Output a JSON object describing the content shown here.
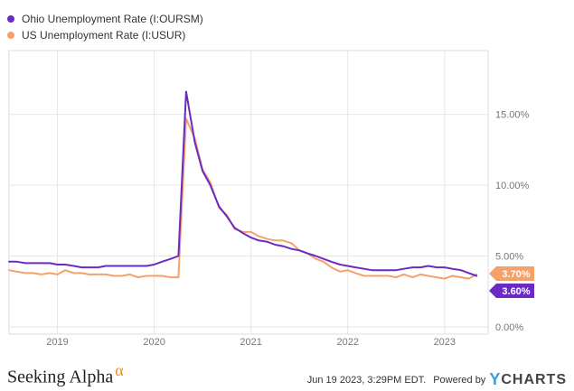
{
  "colors": {
    "ohio": "#6a2bc2",
    "us": "#f6a06a",
    "grid": "#e6e6e6",
    "axis_text": "#777777"
  },
  "legend": {
    "ohio_label": "Ohio Unemployment Rate (I:OURSM)",
    "us_label": "US Unemployment Rate (I:USUR)"
  },
  "footer": {
    "brand": "Seeking Alpha",
    "brand_symbol": "α",
    "timestamp": "Jun 19 2023, 3:29PM EDT.",
    "powered_by": "Powered by",
    "ycharts_y": "Y",
    "ycharts_word": "CHARTS"
  },
  "chart_data": {
    "type": "line",
    "title": "",
    "xlabel": "",
    "ylabel": "",
    "x_ticks": [
      "2019",
      "2020",
      "2021",
      "2022",
      "2023"
    ],
    "y_ticks": [
      "0.00%",
      "5.00%",
      "10.00%",
      "15.00%"
    ],
    "ylim": [
      0,
      19.5
    ],
    "xlim": [
      2018.5,
      2023.45
    ],
    "end_labels": {
      "us": "3.70%",
      "ohio": "3.60%"
    },
    "series": [
      {
        "name": "Ohio Unemployment Rate (I:OURSM)",
        "key": "ohio",
        "x": [
          2018.5,
          2018.58,
          2018.67,
          2018.75,
          2018.83,
          2018.92,
          2019.0,
          2019.08,
          2019.17,
          2019.25,
          2019.33,
          2019.42,
          2019.5,
          2019.58,
          2019.67,
          2019.75,
          2019.83,
          2019.92,
          2020.0,
          2020.08,
          2020.17,
          2020.25,
          2020.33,
          2020.42,
          2020.5,
          2020.58,
          2020.67,
          2020.75,
          2020.83,
          2020.92,
          2021.0,
          2021.08,
          2021.17,
          2021.25,
          2021.33,
          2021.42,
          2021.5,
          2021.58,
          2021.67,
          2021.75,
          2021.83,
          2021.92,
          2022.0,
          2022.08,
          2022.17,
          2022.25,
          2022.33,
          2022.42,
          2022.5,
          2022.58,
          2022.67,
          2022.75,
          2022.83,
          2022.92,
          2023.0,
          2023.08,
          2023.17,
          2023.25,
          2023.33
        ],
        "values": [
          4.6,
          4.6,
          4.5,
          4.5,
          4.5,
          4.5,
          4.4,
          4.4,
          4.3,
          4.2,
          4.2,
          4.2,
          4.3,
          4.3,
          4.3,
          4.3,
          4.3,
          4.3,
          4.4,
          4.6,
          4.8,
          5.0,
          16.6,
          13.0,
          11.0,
          10.0,
          8.5,
          7.8,
          7.0,
          6.6,
          6.3,
          6.1,
          6.0,
          5.8,
          5.7,
          5.5,
          5.4,
          5.2,
          5.0,
          4.8,
          4.6,
          4.4,
          4.3,
          4.2,
          4.1,
          4.0,
          4.0,
          4.0,
          4.0,
          4.1,
          4.2,
          4.2,
          4.3,
          4.2,
          4.2,
          4.1,
          4.0,
          3.8,
          3.6
        ]
      },
      {
        "name": "US Unemployment Rate (I:USUR)",
        "key": "us",
        "x": [
          2018.5,
          2018.58,
          2018.67,
          2018.75,
          2018.83,
          2018.92,
          2019.0,
          2019.08,
          2019.17,
          2019.25,
          2019.33,
          2019.42,
          2019.5,
          2019.58,
          2019.67,
          2019.75,
          2019.83,
          2019.92,
          2020.0,
          2020.08,
          2020.17,
          2020.25,
          2020.33,
          2020.42,
          2020.5,
          2020.58,
          2020.67,
          2020.75,
          2020.83,
          2020.92,
          2021.0,
          2021.08,
          2021.17,
          2021.25,
          2021.33,
          2021.42,
          2021.5,
          2021.58,
          2021.67,
          2021.75,
          2021.83,
          2021.92,
          2022.0,
          2022.08,
          2022.17,
          2022.25,
          2022.33,
          2022.42,
          2022.5,
          2022.58,
          2022.67,
          2022.75,
          2022.83,
          2022.92,
          2023.0,
          2023.08,
          2023.17,
          2023.25,
          2023.33
        ],
        "values": [
          4.0,
          3.9,
          3.8,
          3.8,
          3.7,
          3.8,
          3.7,
          4.0,
          3.8,
          3.8,
          3.7,
          3.7,
          3.7,
          3.6,
          3.6,
          3.7,
          3.5,
          3.6,
          3.6,
          3.6,
          3.5,
          3.5,
          14.7,
          13.3,
          11.1,
          10.2,
          8.4,
          7.9,
          6.9,
          6.7,
          6.7,
          6.4,
          6.2,
          6.1,
          6.1,
          5.9,
          5.4,
          5.2,
          4.8,
          4.6,
          4.2,
          3.9,
          4.0,
          3.8,
          3.6,
          3.6,
          3.6,
          3.6,
          3.5,
          3.7,
          3.5,
          3.7,
          3.6,
          3.5,
          3.4,
          3.6,
          3.5,
          3.4,
          3.7
        ]
      }
    ]
  }
}
